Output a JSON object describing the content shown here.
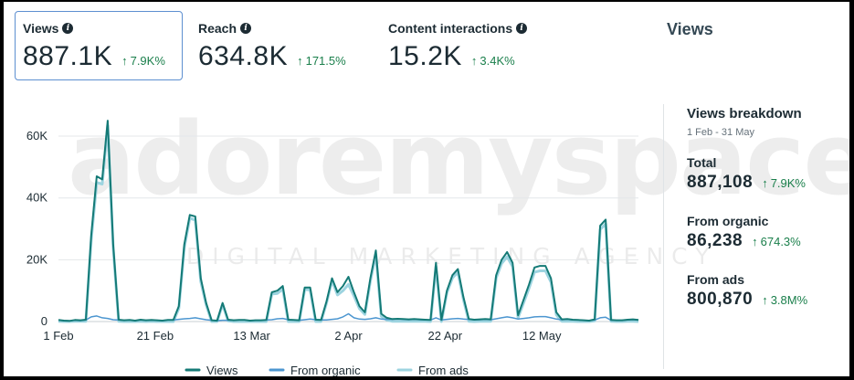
{
  "metrics": [
    {
      "label": "Views",
      "value": "887.1K",
      "delta": "7.9K%",
      "active": true
    },
    {
      "label": "Reach",
      "value": "634.8K",
      "delta": "171.5%",
      "active": false
    },
    {
      "label": "Content interactions",
      "value": "15.2K",
      "delta": "3.4K%",
      "active": false
    }
  ],
  "side_title": "Views",
  "watermark": {
    "main": "adoremyspace",
    "sub": "DIGITAL MARKETING AGENCY"
  },
  "breakdown": {
    "title": "Views breakdown",
    "date_range": "1 Feb - 31 May",
    "items": [
      {
        "label": "Total",
        "value": "887,108",
        "delta": "7.9K%"
      },
      {
        "label": "From organic",
        "value": "86,238",
        "delta": "674.3%"
      },
      {
        "label": "From ads",
        "value": "800,870",
        "delta": "3.8M%"
      }
    ]
  },
  "colors": {
    "views": "#147a76",
    "organic": "#4c96d0",
    "ads": "#9dd4e0",
    "positive": "#1a7f4b",
    "active_border": "#5d8fd0"
  },
  "chart_data": {
    "type": "line",
    "x_start": "1 Feb",
    "x_tick_labels": [
      "1 Feb",
      "21 Feb",
      "13 Mar",
      "2 Apr",
      "22 Apr",
      "12 May"
    ],
    "x_tick_days": [
      0,
      20,
      40,
      60,
      80,
      100
    ],
    "x_range_days": [
      0,
      120
    ],
    "y_ticks": [
      0,
      20000,
      40000,
      60000
    ],
    "y_tick_labels": [
      "0",
      "20K",
      "40K",
      "60K"
    ],
    "ylim": [
      0,
      68000
    ],
    "grid": true,
    "legend_position": "bottom",
    "series": [
      {
        "name": "Views",
        "values": [
          500,
          300,
          200,
          500,
          400,
          600,
          28000,
          47000,
          46000,
          65000,
          25000,
          600,
          400,
          500,
          300,
          600,
          400,
          500,
          400,
          300,
          500,
          500,
          5000,
          25000,
          34500,
          34000,
          14000,
          6000,
          400,
          300,
          6000,
          600,
          400,
          500,
          500,
          300,
          400,
          400,
          500,
          9500,
          10000,
          11500,
          600,
          500,
          400,
          11000,
          11000,
          600,
          500,
          6500,
          14000,
          9500,
          11500,
          14500,
          9500,
          5000,
          3000,
          14000,
          23000,
          2500,
          1200,
          800,
          900,
          800,
          700,
          800,
          700,
          600,
          500,
          19000,
          500,
          10000,
          15000,
          17000,
          8000,
          800,
          600,
          700,
          800,
          700,
          15000,
          20000,
          22500,
          19000,
          2000,
          7000,
          12000,
          17500,
          18000,
          18000,
          14000,
          3000,
          700,
          800,
          600,
          500,
          400,
          300,
          700,
          31000,
          33000,
          500,
          400,
          400,
          600,
          700,
          500
        ],
        "color": "#147a76"
      },
      {
        "name": "From organic",
        "values": [
          400,
          300,
          200,
          400,
          300,
          500,
          1500,
          1800,
          1200,
          1000,
          600,
          500,
          400,
          500,
          300,
          500,
          400,
          400,
          400,
          300,
          500,
          500,
          700,
          900,
          1000,
          1200,
          900,
          600,
          400,
          300,
          400,
          400,
          400,
          500,
          500,
          300,
          400,
          400,
          500,
          600,
          900,
          1000,
          600,
          500,
          400,
          600,
          800,
          600,
          500,
          500,
          700,
          900,
          1500,
          2500,
          1200,
          800,
          700,
          900,
          1200,
          800,
          700,
          700,
          800,
          700,
          600,
          700,
          600,
          500,
          500,
          1200,
          500,
          700,
          900,
          1000,
          800,
          700,
          600,
          600,
          700,
          600,
          900,
          1200,
          1500,
          1200,
          800,
          1000,
          1200,
          1500,
          1600,
          1600,
          1200,
          800,
          600,
          700,
          500,
          500,
          400,
          300,
          500,
          1200,
          1400,
          400,
          400,
          400,
          500,
          600,
          500
        ],
        "color": "#4c96d0"
      },
      {
        "name": "From ads",
        "values": [
          100,
          0,
          0,
          100,
          100,
          100,
          26500,
          45000,
          44500,
          63500,
          24000,
          100,
          0,
          0,
          0,
          100,
          0,
          100,
          0,
          0,
          0,
          0,
          4300,
          24000,
          33500,
          32800,
          13000,
          5400,
          0,
          0,
          5600,
          200,
          0,
          0,
          0,
          0,
          0,
          0,
          0,
          8900,
          9100,
          10500,
          0,
          0,
          0,
          10400,
          10200,
          0,
          0,
          6000,
          13300,
          8600,
          10000,
          12000,
          8300,
          4200,
          2300,
          13100,
          21800,
          1700,
          500,
          100,
          100,
          100,
          100,
          100,
          100,
          100,
          0,
          17800,
          0,
          9300,
          14100,
          16000,
          7200,
          100,
          0,
          100,
          100,
          100,
          14100,
          18800,
          21000,
          17800,
          1200,
          6000,
          10800,
          16000,
          16400,
          16400,
          12800,
          2200,
          100,
          100,
          100,
          0,
          0,
          0,
          200,
          29800,
          31600,
          100,
          0,
          0,
          100,
          100,
          0
        ],
        "color": "#9dd4e0"
      }
    ]
  }
}
